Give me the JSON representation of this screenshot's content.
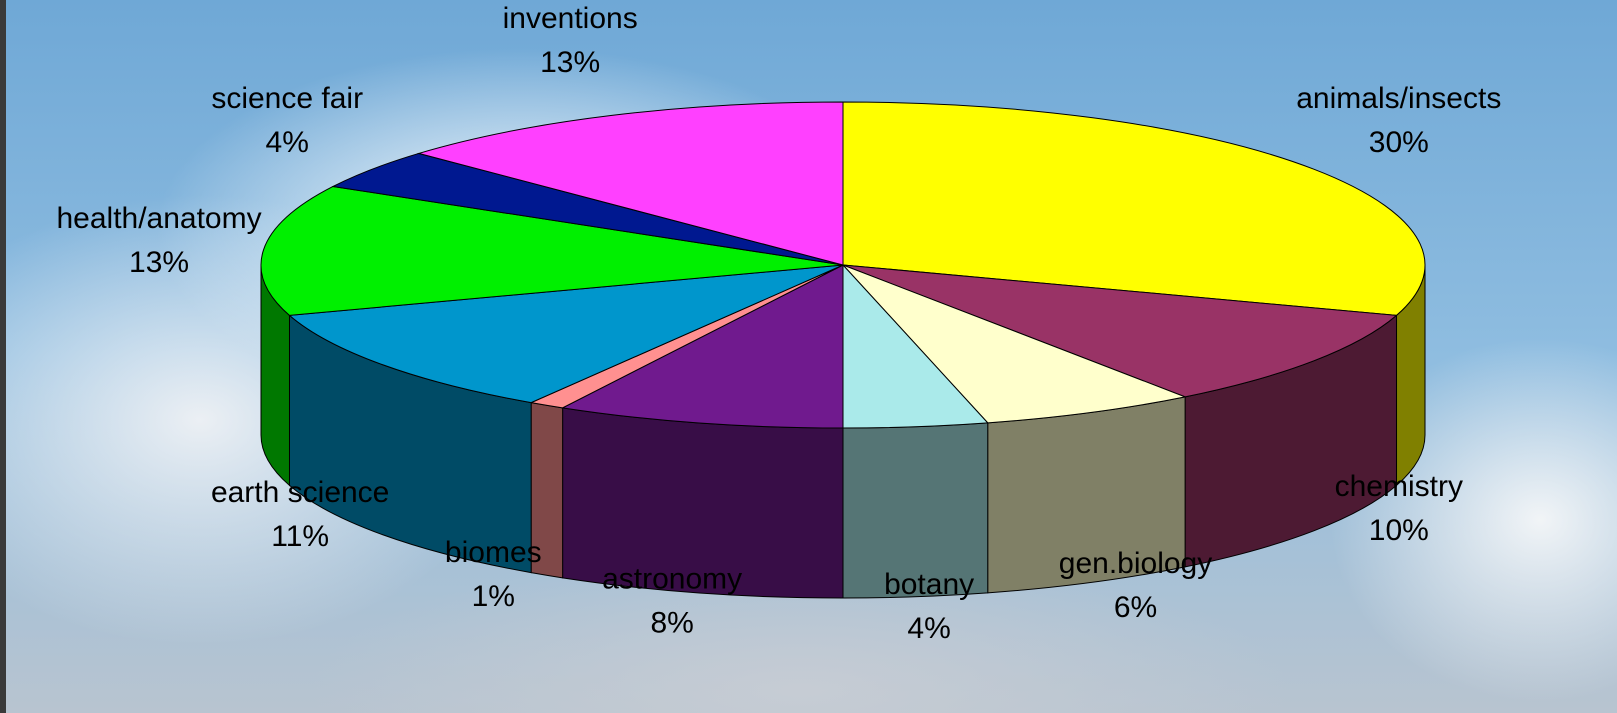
{
  "chart_data": {
    "type": "pie3d",
    "categories": [
      "animals/insects",
      "chemistry",
      "gen.biology",
      "botany",
      "astronomy",
      "biomes",
      "earth science",
      "health/anatomy",
      "science fair",
      "inventions"
    ],
    "values": [
      30,
      10,
      6,
      4,
      8,
      1,
      11,
      13,
      4,
      13
    ],
    "value_labels": [
      "30%",
      "10%",
      "6%",
      "4%",
      "8%",
      "1%",
      "11%",
      "13%",
      "4%",
      "13%"
    ],
    "colors": [
      "#ffff00",
      "#993366",
      "#ffffcc",
      "#aaeaea",
      "#701a8e",
      "#ff9090",
      "#0096cc",
      "#00f000",
      "#001890",
      "#ff40ff"
    ]
  }
}
